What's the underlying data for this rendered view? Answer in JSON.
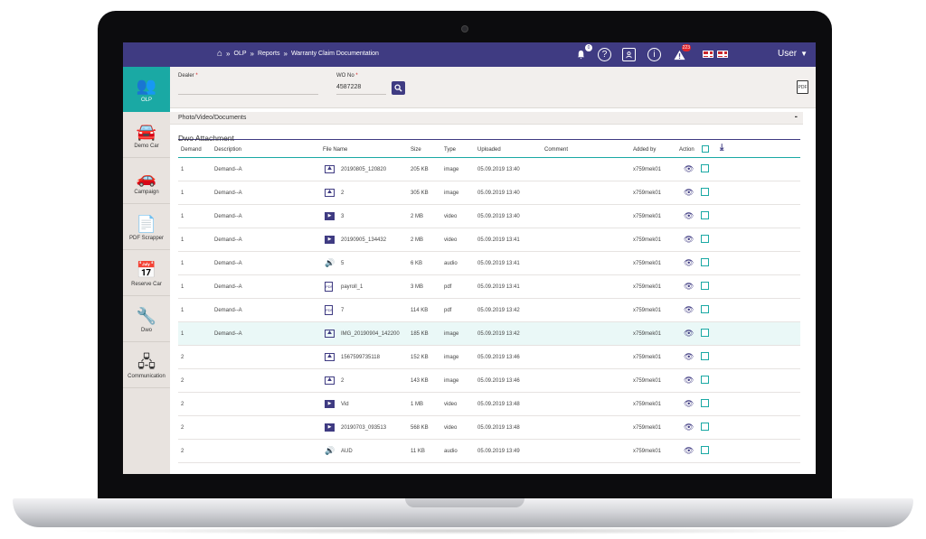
{
  "breadcrumb": [
    "OLP",
    "Reports",
    "Warranty Claim Documentation"
  ],
  "breadcrumb_sep": "»",
  "topbar": {
    "notification_count": "0",
    "alert_count": "223",
    "user_label": "User"
  },
  "sidebar": {
    "items": [
      {
        "label": "OLP",
        "icon": "olp-people-icon",
        "glyph": "👥",
        "active": true
      },
      {
        "label": "Demo Car",
        "icon": "car-icon",
        "glyph": "🚘",
        "active": false
      },
      {
        "label": "Campaign",
        "icon": "campaign-car-icon",
        "glyph": "🚗",
        "active": false
      },
      {
        "label": "PDF Scrapper",
        "icon": "pdf-icon",
        "glyph": "📄",
        "active": false
      },
      {
        "label": "Reserve Car",
        "icon": "calendar-icon",
        "glyph": "📅",
        "active": false
      },
      {
        "label": "Dwo",
        "icon": "dwo-tool-icon",
        "glyph": "🔧",
        "active": false
      },
      {
        "label": "Communication",
        "icon": "network-icon",
        "glyph": "🖧",
        "active": false
      }
    ]
  },
  "filter": {
    "dealer_label": "Dealer",
    "dealer_value": "",
    "wo_label": "WO No",
    "wo_value": "4587228",
    "required_mark": "*"
  },
  "section": {
    "title": "Photo/Video/Documents",
    "collapse": "-",
    "subtitle": "Dwo Attachment"
  },
  "table": {
    "columns": [
      "Demand",
      "Description",
      "File Name",
      "Size",
      "Type",
      "Uploaded",
      "Comment",
      "Added by",
      "Action"
    ],
    "rows": [
      {
        "demand": "1",
        "description": "Demand--A",
        "type_icon": "image",
        "file": "20190805_120820",
        "size": "205 KB",
        "type": "image",
        "uploaded": "05.09.2019 13:40",
        "comment": "",
        "added_by": "x759mek01"
      },
      {
        "demand": "1",
        "description": "Demand--A",
        "type_icon": "image",
        "file": "2",
        "size": "305 KB",
        "type": "image",
        "uploaded": "05.09.2019 13:40",
        "comment": "",
        "added_by": "x759mek01"
      },
      {
        "demand": "1",
        "description": "Demand--A",
        "type_icon": "video",
        "file": "3",
        "size": "2 MB",
        "type": "video",
        "uploaded": "05.09.2019 13:40",
        "comment": "",
        "added_by": "x759mek01"
      },
      {
        "demand": "1",
        "description": "Demand--A",
        "type_icon": "video",
        "file": "20190905_134432",
        "size": "2 MB",
        "type": "video",
        "uploaded": "05.09.2019 13:41",
        "comment": "",
        "added_by": "x759mek01"
      },
      {
        "demand": "1",
        "description": "Demand--A",
        "type_icon": "audio",
        "file": "5",
        "size": "6 KB",
        "type": "audio",
        "uploaded": "05.09.2019 13:41",
        "comment": "",
        "added_by": "x759mek01"
      },
      {
        "demand": "1",
        "description": "Demand--A",
        "type_icon": "pdf",
        "file": "payroll_1",
        "size": "3 MB",
        "type": "pdf",
        "uploaded": "05.09.2019 13:41",
        "comment": "",
        "added_by": "x759mek01"
      },
      {
        "demand": "1",
        "description": "Demand--A",
        "type_icon": "pdf",
        "file": "7",
        "size": "114 KB",
        "type": "pdf",
        "uploaded": "05.09.2019 13:42",
        "comment": "",
        "added_by": "x759mek01"
      },
      {
        "demand": "1",
        "description": "Demand--A",
        "type_icon": "image",
        "file": "IMG_20190904_142200",
        "size": "185 KB",
        "type": "image",
        "uploaded": "05.09.2019 13:42",
        "comment": "",
        "added_by": "x759mek01",
        "highlight": true
      },
      {
        "demand": "2",
        "description": "",
        "type_icon": "image",
        "file": "1567599735118",
        "size": "152 KB",
        "type": "image",
        "uploaded": "05.09.2019 13:46",
        "comment": "",
        "added_by": "x759mek01"
      },
      {
        "demand": "2",
        "description": "",
        "type_icon": "image",
        "file": "2",
        "size": "143 KB",
        "type": "image",
        "uploaded": "05.09.2019 13:46",
        "comment": "",
        "added_by": "x759mek01"
      },
      {
        "demand": "2",
        "description": "",
        "type_icon": "video",
        "file": "Vid",
        "size": "1 MB",
        "type": "video",
        "uploaded": "05.09.2019 13:48",
        "comment": "",
        "added_by": "x759mek01"
      },
      {
        "demand": "2",
        "description": "",
        "type_icon": "video",
        "file": "20190703_093513",
        "size": "568 KB",
        "type": "video",
        "uploaded": "05.09.2019 13:48",
        "comment": "",
        "added_by": "x759mek01"
      },
      {
        "demand": "2",
        "description": "",
        "type_icon": "audio",
        "file": "AUD",
        "size": "11 KB",
        "type": "audio",
        "uploaded": "05.09.2019 13:49",
        "comment": "",
        "added_by": "x759mek01"
      }
    ]
  },
  "colors": {
    "primary": "#3f3b82",
    "accent": "#1aa9a4",
    "sidebar_bg": "#e8e3df",
    "alert": "#e0242b"
  }
}
